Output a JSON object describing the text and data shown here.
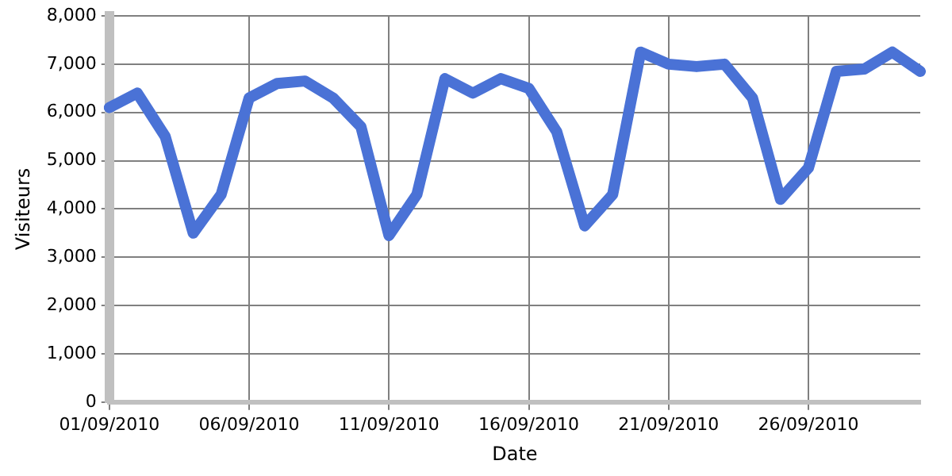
{
  "chart_data": {
    "type": "line",
    "xlabel": "Date",
    "ylabel": "Visiteurs",
    "categories": [
      "01/09/2010",
      null,
      null,
      null,
      null,
      "06/09/2010",
      null,
      null,
      null,
      null,
      "11/09/2010",
      null,
      null,
      null,
      null,
      "16/09/2010",
      null,
      null,
      null,
      null,
      "21/09/2010",
      null,
      null,
      null,
      null,
      "26/09/2010",
      null,
      null,
      null,
      null
    ],
    "series": [
      {
        "color": "#4a72d6",
        "values": [
          6100,
          6400,
          5500,
          3500,
          4300,
          6300,
          6600,
          6650,
          6300,
          5700,
          3450,
          4300,
          6700,
          6400,
          6700,
          6500,
          5600,
          3650,
          4300,
          7250,
          7000,
          6950,
          7000,
          6300,
          4200,
          4850,
          6850,
          6900,
          7250,
          6850
        ]
      }
    ],
    "ylim": [
      0,
      8000
    ],
    "yticks": [
      0,
      {
        "value": 1000,
        "label": "1,000"
      },
      {
        "value": 2000,
        "label": "2,000"
      },
      {
        "value": 3000,
        "label": "3,000"
      },
      {
        "value": 4000,
        "label": "4,000"
      },
      {
        "value": 5000,
        "label": "5,000"
      },
      {
        "value": 6000,
        "label": "6,000"
      },
      {
        "value": 7000,
        "label": "7,000"
      },
      {
        "value": 8000,
        "label": "8,000"
      }
    ],
    "grid": true,
    "legend": false,
    "marker": "none",
    "line_style": "solid"
  }
}
